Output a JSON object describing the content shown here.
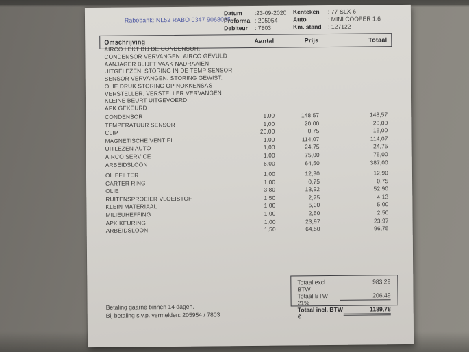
{
  "colors": {
    "bank_text": "#4a55a1",
    "paper": "#d6d4cf",
    "background": "#82807a",
    "ink": "#3d3c3b"
  },
  "invoice": {
    "bank_line": "Rabobank: NL52 RABO 0347 9068085",
    "info_left": [
      {
        "label": "Datum",
        "value": ":23-09-2020"
      },
      {
        "label": "Proforma",
        "value": ": 205954"
      },
      {
        "label": "Debiteur",
        "value": ": 7803"
      }
    ],
    "info_right": [
      {
        "label": "Kenteken",
        "value": ": 77-SLX-6"
      },
      {
        "label": "Auto",
        "value": ": MINI COOPER 1.6"
      },
      {
        "label": "Km. stand",
        "value": ": 127122"
      }
    ],
    "table": {
      "headers": {
        "description": "Omschrijving",
        "quantity": "Aantal",
        "price": "Prijs",
        "total": "Totaal"
      },
      "work_description": [
        "AIRCO LEKT BIJ DE CONDENSOR.",
        "CONDENSOR VERVANGEN. AIRCO GEVULD",
        "AANJAGER BLIJFT VAAK NADRAAIEN",
        "UITGELEZEN. STORING IN DE TEMP SENSOR",
        "SENSOR VERVANGEN. STORING GEWIST.",
        "OLIE DRUK STORING OP NOKKENSAS",
        "VERSTELLER. VERSTELLER VERVANGEN",
        "KLEINE BEURT UITGEVOERD",
        "APK GEKEURD"
      ],
      "groups": [
        {
          "rows": [
            {
              "description": "CONDENSOR",
              "quantity": "1,00",
              "price": "148,57",
              "total": "148,57"
            },
            {
              "description": "TEMPERATUUR SENSOR",
              "quantity": "1,00",
              "price": "20,00",
              "total": "20,00"
            },
            {
              "description": "CLIP",
              "quantity": "20,00",
              "price": "0,75",
              "total": "15,00"
            },
            {
              "description": "MAGNETISCHE VENTIEL",
              "quantity": "1,00",
              "price": "114,07",
              "total": "114,07"
            },
            {
              "description": "UITLEZEN AUTO",
              "quantity": "1,00",
              "price": "24,75",
              "total": "24,75"
            },
            {
              "description": "AIRCO SERVICE",
              "quantity": "1,00",
              "price": "75,00",
              "total": "75,00"
            },
            {
              "description": "ARBEIDSLOON",
              "quantity": "6,00",
              "price": "64,50",
              "total": "387,00"
            }
          ]
        },
        {
          "rows": [
            {
              "description": "OLIEFILTER",
              "quantity": "1,00",
              "price": "12,90",
              "total": "12,90"
            },
            {
              "description": "CARTER RING",
              "quantity": "1,00",
              "price": "0,75",
              "total": "0,75"
            },
            {
              "description": "OLIE",
              "quantity": "3,80",
              "price": "13,92",
              "total": "52,90"
            },
            {
              "description": "RUITENSPROEIER VLOEISTOF",
              "quantity": "1,50",
              "price": "2,75",
              "total": "4,13"
            },
            {
              "description": "KLEIN MATERIAAL",
              "quantity": "1,00",
              "price": "5,00",
              "total": "5,00"
            },
            {
              "description": "MILIEUHEFFING",
              "quantity": "1,00",
              "price": "2,50",
              "total": "2,50"
            },
            {
              "description": "APK KEURING",
              "quantity": "1,00",
              "price": "23,97",
              "total": "23,97"
            },
            {
              "description": "ARBEIDSLOON",
              "quantity": "1,50",
              "price": "64,50",
              "total": "96,75"
            }
          ]
        }
      ]
    },
    "totals": {
      "excl_label": "Totaal excl. BTW",
      "excl_value": "983,29",
      "btw_label": "Totaal BTW 21%",
      "btw_value": "206,49",
      "incl_label": "Totaal incl. BTW €",
      "incl_value": "1189,78"
    },
    "footer": [
      "Betaling gaarne binnen 14 dagen.",
      "Bij betaling s.v.p. vermelden: 205954 / 7803"
    ]
  }
}
